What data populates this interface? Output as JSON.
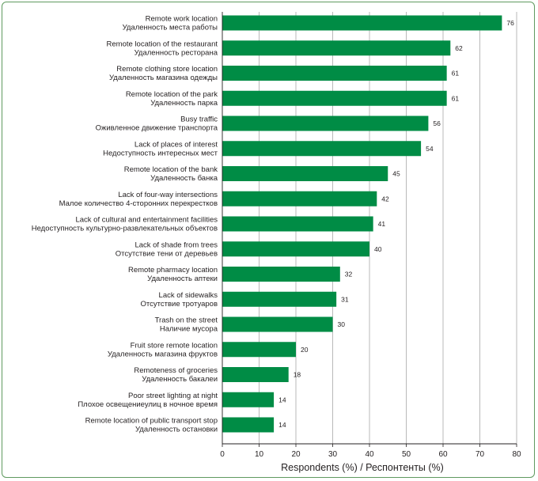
{
  "chart_data": {
    "type": "bar",
    "orientation": "horizontal",
    "categories": [
      [
        "Remote work location",
        "Удаленность места работы"
      ],
      [
        "Remote location of the restaurant",
        "Удаленность ресторана"
      ],
      [
        "Remote clothing store location",
        "Удаленность магазина одежды"
      ],
      [
        "Remote location of the park",
        "Удаленность парка"
      ],
      [
        "Busy traffic",
        "Оживленное движение транспорта"
      ],
      [
        "Lack of places of interest",
        "Недоступность интересных мест"
      ],
      [
        "Remote location of the bank",
        "Удаленность банка"
      ],
      [
        "Lack of four-way intersections",
        "Малое количество 4-сторонних перекрестков"
      ],
      [
        "Lack of cultural and entertainment facilities",
        "Недоступность культурно-развлекательных объектов"
      ],
      [
        "Lack of shade from trees",
        "Отсутствие тени от деревьев"
      ],
      [
        "Remote pharmacy location",
        "Удаленность аптеки"
      ],
      [
        "Lack of sidewalks",
        "Отсутствие тротуаров"
      ],
      [
        "Trash on the street",
        "Наличие мусора"
      ],
      [
        "Fruit store remote location",
        "Удаленность магазина фруктов"
      ],
      [
        "Remoteness of groceries",
        "Удаленность бакалеи"
      ],
      [
        "Poor street lighting at night",
        "Плохое освещениеулиц в ночное время"
      ],
      [
        "Remote location of public transport stop",
        "Удаленность остановки"
      ]
    ],
    "values": [
      76,
      62,
      61,
      61,
      56,
      54,
      45,
      42,
      41,
      40,
      32,
      31,
      30,
      20,
      18,
      14,
      14
    ],
    "xlabel": "Respondents (%) / Респонтенты (%)",
    "xlim": [
      0,
      80
    ],
    "xticks": [
      0,
      10,
      20,
      30,
      40,
      50,
      60,
      70,
      80
    ],
    "grid": "vertical",
    "bar_color": "#008c45",
    "grid_color": "#8a8a8a",
    "axis_color": "#231f20"
  }
}
